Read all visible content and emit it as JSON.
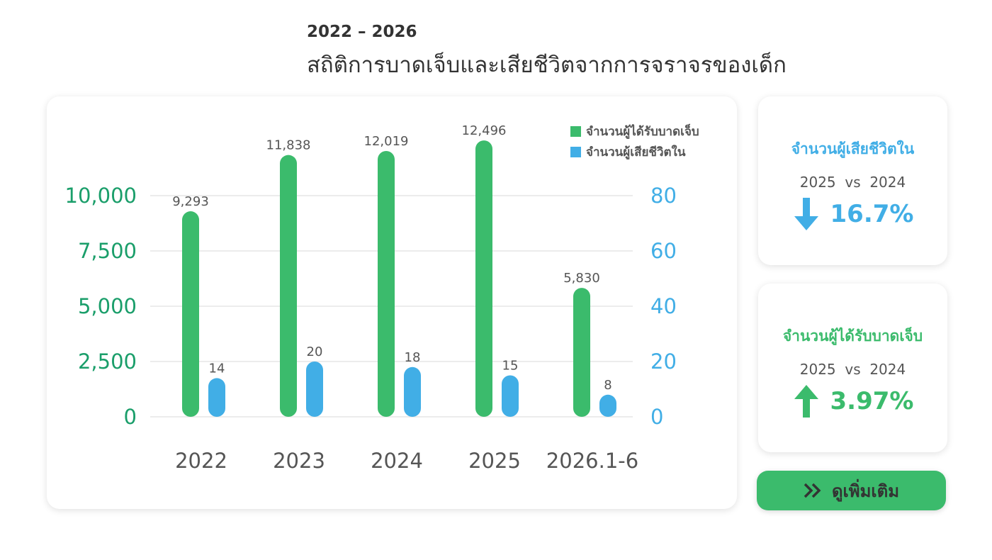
{
  "chart_data": {
    "type": "bar",
    "subtitle": "2022 – 2026",
    "title": "สถิติการบาดเจ็บและเสียชีวิตจากการจราจรของเด็ก",
    "categories": [
      "2022",
      "2023",
      "2024",
      "2025",
      "2026.1-6"
    ],
    "series": [
      {
        "name": "จำนวนผู้ได้รับบาดเจ็บ",
        "color": "#3bbb6c",
        "values": [
          9293,
          11838,
          12019,
          12496,
          5830
        ],
        "value_labels": [
          "9,293",
          "11,838",
          "12,019",
          "12,496",
          "5,830"
        ]
      },
      {
        "name": "จำนวนผู้เสียชีวิตใน",
        "color": "#41aee6",
        "axis": "y2",
        "values": [
          14,
          20,
          18,
          15,
          8
        ]
      }
    ],
    "ylim": [
      0,
      12500
    ],
    "yticks": [
      0,
      {
        "value": 2500,
        "label": "2,500"
      },
      {
        "value": 5000,
        "label": "5,000"
      },
      {
        "value": 7500,
        "label": "7,500"
      },
      {
        "value": 10000,
        "label": "10,000"
      }
    ],
    "y2lim": [
      0,
      100
    ],
    "y2ticks": [
      0,
      20,
      40,
      60,
      80
    ],
    "grid": true,
    "legend": "upper right"
  },
  "kpis": [
    {
      "title": "จำนวนผู้เสียชีวิตใน",
      "comparison": "2025  vs  2024",
      "value": "16.7%"
    },
    {
      "title": "จำนวนผู้ได้รับบาดเจ็บ",
      "comparison": "2025  vs  2024",
      "value": "3.97%"
    }
  ],
  "button": {
    "label": "ดูเพิ่มเติม"
  }
}
